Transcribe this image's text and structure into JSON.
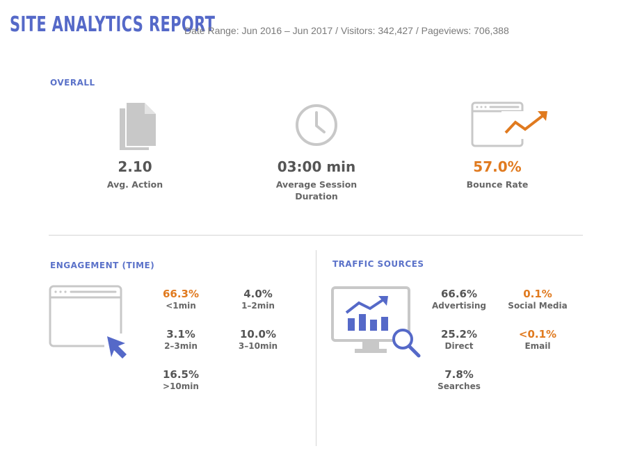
{
  "header": {
    "title": "SITE ANALYTICS REPORT",
    "summary": "Date Range: Jun 2016 – Jun 2017 / Visitors: 342,427 / Pageviews: 706,388"
  },
  "overall": {
    "label": "OVERALL",
    "avg_action": {
      "value": "2.10",
      "label": "Avg. Action",
      "icon": "document-icon"
    },
    "session": {
      "value": "03:00 min",
      "label_line1": "Average Session",
      "label_line2": "Duration",
      "icon": "clock-icon"
    },
    "bounce": {
      "value": "57.0%",
      "label": "Bounce Rate",
      "icon": "browser-trend-icon"
    }
  },
  "engagement": {
    "label": "ENGAGEMENT (TIME)",
    "items": [
      {
        "value": "66.3%",
        "label": "<1min",
        "highlight": true
      },
      {
        "value": "4.0%",
        "label": "1–2min",
        "highlight": false
      },
      {
        "value": "3.1%",
        "label": "2–3min",
        "highlight": false
      },
      {
        "value": "10.0%",
        "label": "3–10min",
        "highlight": false
      },
      {
        "value": "16.5%",
        "label": ">10min",
        "highlight": false
      }
    ]
  },
  "traffic": {
    "label": "TRAFFIC SOURCES",
    "items": [
      {
        "value": "66.6%",
        "label": "Advertising",
        "highlight": false
      },
      {
        "value": "0.1%",
        "label": "Social Media",
        "highlight": true
      },
      {
        "value": "25.2%",
        "label": "Direct",
        "highlight": false
      },
      {
        "value": "<0.1%",
        "label": "Email",
        "highlight": true
      },
      {
        "value": "7.8%",
        "label": "Searches",
        "highlight": false
      }
    ]
  },
  "colors": {
    "accent_blue": "#5569c8",
    "accent_orange": "#e07a1f",
    "icon_gray": "#c8c8c8",
    "text_gray": "#555555"
  }
}
